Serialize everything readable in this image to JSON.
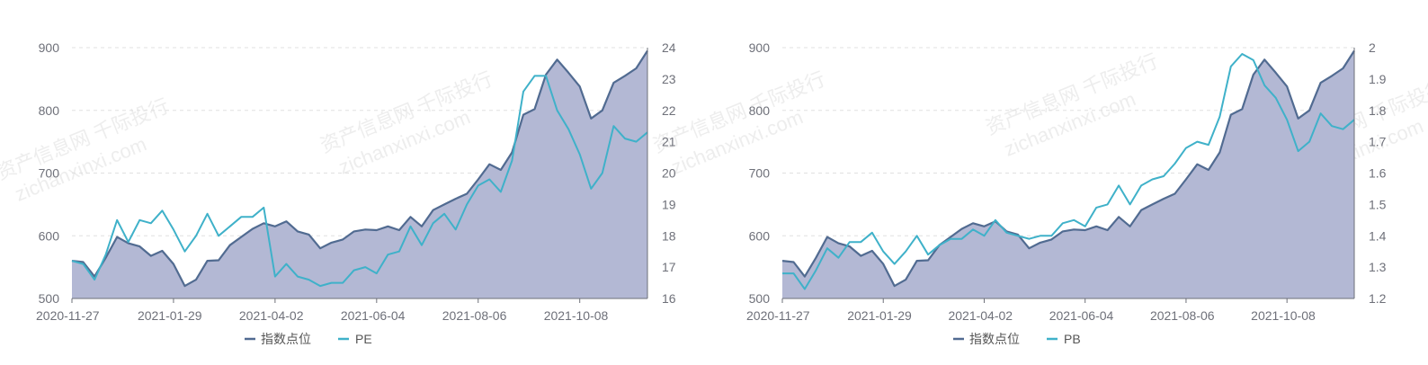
{
  "legend": {
    "index_label": "指数点位",
    "pe_label": "PE",
    "pb_label": "PB"
  },
  "colors": {
    "index_line": "#516b91",
    "index_fill": "#b3b8d4",
    "ratio_line": "#3fb1c9",
    "axis": "#6e7079",
    "grid": "#e0e0e0"
  },
  "watermark": {
    "cn": "资产信息网 千际投行",
    "en": "zichanxinxi.com"
  },
  "chart_data": [
    {
      "type": "line",
      "x_ticks": [
        "2020-11-27",
        "2021-01-29",
        "2021-04-02",
        "2021-06-04",
        "2021-08-06",
        "2021-10-08"
      ],
      "y_left": {
        "min": 500,
        "max": 900,
        "ticks": [
          500,
          600,
          700,
          800,
          900
        ]
      },
      "y_right": {
        "min": 16,
        "max": 24,
        "ticks": [
          16,
          17,
          18,
          19,
          20,
          21,
          22,
          23,
          24
        ]
      },
      "grid": true,
      "legend_position": "bottom-center",
      "series": [
        {
          "name": "指数点位",
          "axis": "left",
          "area": true,
          "values": [
            560,
            558,
            535,
            565,
            598,
            588,
            583,
            568,
            576,
            555,
            520,
            530,
            560,
            561,
            585,
            598,
            611,
            620,
            615,
            623,
            607,
            602,
            580,
            589,
            594,
            607,
            610,
            609,
            615,
            609,
            630,
            615,
            641,
            650,
            659,
            667,
            690,
            714,
            705,
            733,
            793,
            802,
            857,
            881,
            860,
            838,
            787,
            800,
            844,
            855,
            867,
            895
          ]
        },
        {
          "name": "PE",
          "axis": "right",
          "values": [
            17.2,
            17.1,
            16.6,
            17.4,
            18.5,
            17.8,
            18.5,
            18.4,
            18.8,
            18.2,
            17.5,
            18.0,
            18.7,
            18.0,
            18.3,
            18.6,
            18.6,
            18.9,
            16.7,
            17.1,
            16.7,
            16.6,
            16.4,
            16.5,
            16.5,
            16.9,
            17.0,
            16.8,
            17.4,
            17.5,
            18.3,
            17.7,
            18.4,
            18.7,
            18.2,
            19.0,
            19.6,
            19.8,
            19.4,
            20.4,
            22.6,
            23.1,
            23.1,
            22.0,
            21.4,
            20.6,
            19.5,
            20.0,
            21.5,
            21.1,
            21.0,
            21.3
          ]
        }
      ]
    },
    {
      "type": "line",
      "x_ticks": [
        "2020-11-27",
        "2021-01-29",
        "2021-04-02",
        "2021-06-04",
        "2021-08-06",
        "2021-10-08"
      ],
      "y_left": {
        "min": 500,
        "max": 900,
        "ticks": [
          500,
          600,
          700,
          800,
          900
        ]
      },
      "y_right": {
        "min": 1.2,
        "max": 2,
        "ticks": [
          "1.2",
          "1.3",
          "1.4",
          "1.5",
          "1.6",
          "1.7",
          "1.8",
          "1.9",
          "2"
        ]
      },
      "grid": true,
      "legend_position": "bottom-center",
      "series": [
        {
          "name": "指数点位",
          "axis": "left",
          "area": true,
          "values": [
            560,
            558,
            535,
            565,
            598,
            588,
            583,
            568,
            576,
            555,
            520,
            530,
            560,
            561,
            585,
            598,
            611,
            620,
            615,
            623,
            607,
            602,
            580,
            589,
            594,
            607,
            610,
            609,
            615,
            609,
            630,
            615,
            641,
            650,
            659,
            667,
            690,
            714,
            705,
            733,
            793,
            802,
            857,
            881,
            860,
            838,
            787,
            800,
            844,
            855,
            867,
            895
          ]
        },
        {
          "name": "PB",
          "axis": "right",
          "values": [
            1.28,
            1.28,
            1.23,
            1.29,
            1.36,
            1.33,
            1.38,
            1.38,
            1.41,
            1.35,
            1.31,
            1.35,
            1.4,
            1.34,
            1.37,
            1.39,
            1.39,
            1.42,
            1.4,
            1.45,
            1.41,
            1.4,
            1.39,
            1.4,
            1.4,
            1.44,
            1.45,
            1.43,
            1.49,
            1.5,
            1.56,
            1.5,
            1.56,
            1.58,
            1.59,
            1.63,
            1.68,
            1.7,
            1.69,
            1.78,
            1.94,
            1.98,
            1.96,
            1.88,
            1.84,
            1.77,
            1.67,
            1.7,
            1.79,
            1.75,
            1.74,
            1.77
          ]
        }
      ]
    }
  ]
}
